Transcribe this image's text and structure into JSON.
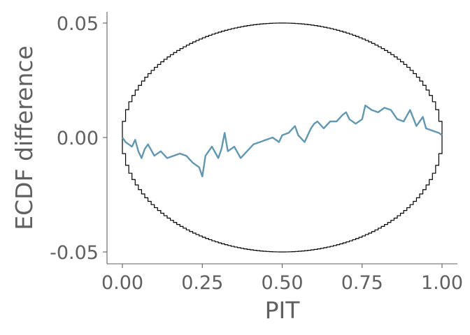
{
  "chart_data": {
    "type": "line",
    "xlabel": "PIT",
    "ylabel": "ECDF difference",
    "xlim": [
      0,
      1
    ],
    "ylim": [
      -0.055,
      0.055
    ],
    "x_ticks": [
      0,
      0.25,
      0.5,
      0.75,
      1
    ],
    "x_tick_labels": [
      "0.00",
      "0.25",
      "0.50",
      "0.75",
      "1.00"
    ],
    "y_ticks": [
      -0.05,
      0,
      0.05
    ],
    "y_tick_labels": [
      "-0.05",
      "0.00",
      "0.05"
    ],
    "grid": false,
    "legend": "none",
    "colors": {
      "ecdf": "#6197b1",
      "envelope": "#000000",
      "axis": "#606060"
    },
    "envelope": {
      "x_center": 0.5,
      "max_abs_y": 0.05,
      "steps": 100
    },
    "series": [
      {
        "x": [
          0,
          0.01,
          0.02,
          0.03,
          0.04,
          0.05,
          0.06,
          0.07,
          0.08,
          0.1,
          0.12,
          0.14,
          0.16,
          0.18,
          0.2,
          0.22,
          0.24,
          0.25,
          0.26,
          0.28,
          0.3,
          0.31,
          0.32,
          0.33,
          0.35,
          0.37,
          0.39,
          0.41,
          0.43,
          0.45,
          0.47,
          0.49,
          0.5,
          0.52,
          0.54,
          0.55,
          0.57,
          0.59,
          0.6,
          0.61,
          0.63,
          0.65,
          0.67,
          0.69,
          0.7,
          0.71,
          0.73,
          0.75,
          0.76,
          0.78,
          0.8,
          0.82,
          0.84,
          0.86,
          0.88,
          0.9,
          0.92,
          0.94,
          0.95,
          0.97,
          0.99,
          1.0
        ],
        "y": [
          0.0,
          -0.002,
          -0.003,
          -0.004,
          -0.001,
          -0.006,
          -0.009,
          -0.005,
          -0.003,
          -0.008,
          -0.006,
          -0.009,
          -0.008,
          -0.007,
          -0.008,
          -0.011,
          -0.013,
          -0.017,
          -0.008,
          -0.004,
          -0.009,
          -0.005,
          0.002,
          -0.006,
          -0.004,
          -0.009,
          -0.006,
          -0.003,
          -0.002,
          -0.001,
          0.0,
          -0.002,
          0.001,
          0.002,
          0.005,
          0.001,
          -0.002,
          0.004,
          0.006,
          0.007,
          0.004,
          0.007,
          0.007,
          0.01,
          0.011,
          0.008,
          0.006,
          0.008,
          0.014,
          0.012,
          0.011,
          0.013,
          0.012,
          0.008,
          0.007,
          0.012,
          0.005,
          0.009,
          0.004,
          0.003,
          0.002,
          0.001
        ]
      }
    ]
  }
}
